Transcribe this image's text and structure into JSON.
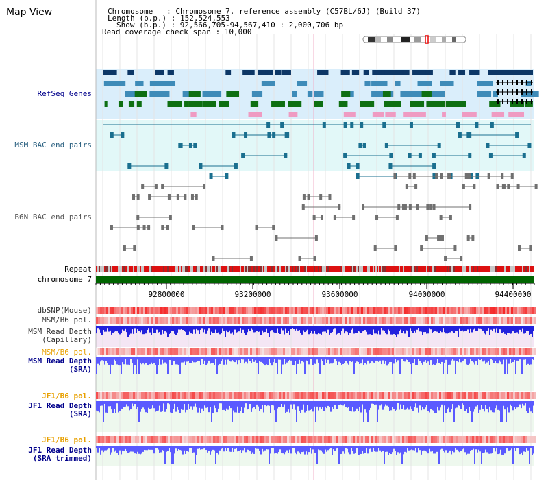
{
  "header": {
    "title": "Map View",
    "chromosome_line": "Chromosome   : Chromosome 7, reference assembly (C57BL/6J) (Build 37)",
    "length_line": "Length (b.p.) : 152,524,553",
    "show_line": "Show (b.p.) : 92,566,705-94,567,410 : 2,000,706 bp",
    "coverage_line": "Read coverage check span : 10,000"
  },
  "tracks": {
    "refseq": "RefSeq Genes",
    "msm_bac": "MSM BAC end pairs",
    "b6n_bac": "B6N BAC end pairs",
    "repeat": "Repeat",
    "chromosome": "chromosome 7",
    "dbsnp": "dbSNP(Mouse)",
    "msm_b6_pol": "MSM/B6 pol.",
    "msm_depth_cap": "MSM Read Depth\n(Capillary)",
    "msm_b6_pol2": "MSM/B6 pol.",
    "msm_depth_sra": "MSM Read Depth\n(SRA)",
    "jf1_b6_pol": "JF1/B6 pol.",
    "jf1_depth_sra": "JF1 Read Depth\n(SRA)",
    "jf1_b6_pol2": "JF1/B6 pol.",
    "jf1_depth_trim": "JF1 Read Depth\n(SRA trimmed)"
  },
  "ruler": {
    "ticks": [
      "92800000",
      "93200000",
      "93600000",
      "94000000",
      "94400000"
    ]
  },
  "colors": {
    "refseq_bg": "#daeefb",
    "msm_bg": "#e2f8f8",
    "gene_navy": "#0d3766",
    "gene_blue": "#3e8bb8",
    "gene_green": "#0e6f12",
    "gene_pink": "#ef9bc2",
    "msm_teal": "#1a6f8f",
    "b6n_gray": "#707070",
    "chrom_green": "#006400",
    "depth_blue": "#5a5aff",
    "label_blue": "#00008b",
    "label_orange": "#e8a000",
    "label_teal": "#2a6080"
  }
}
